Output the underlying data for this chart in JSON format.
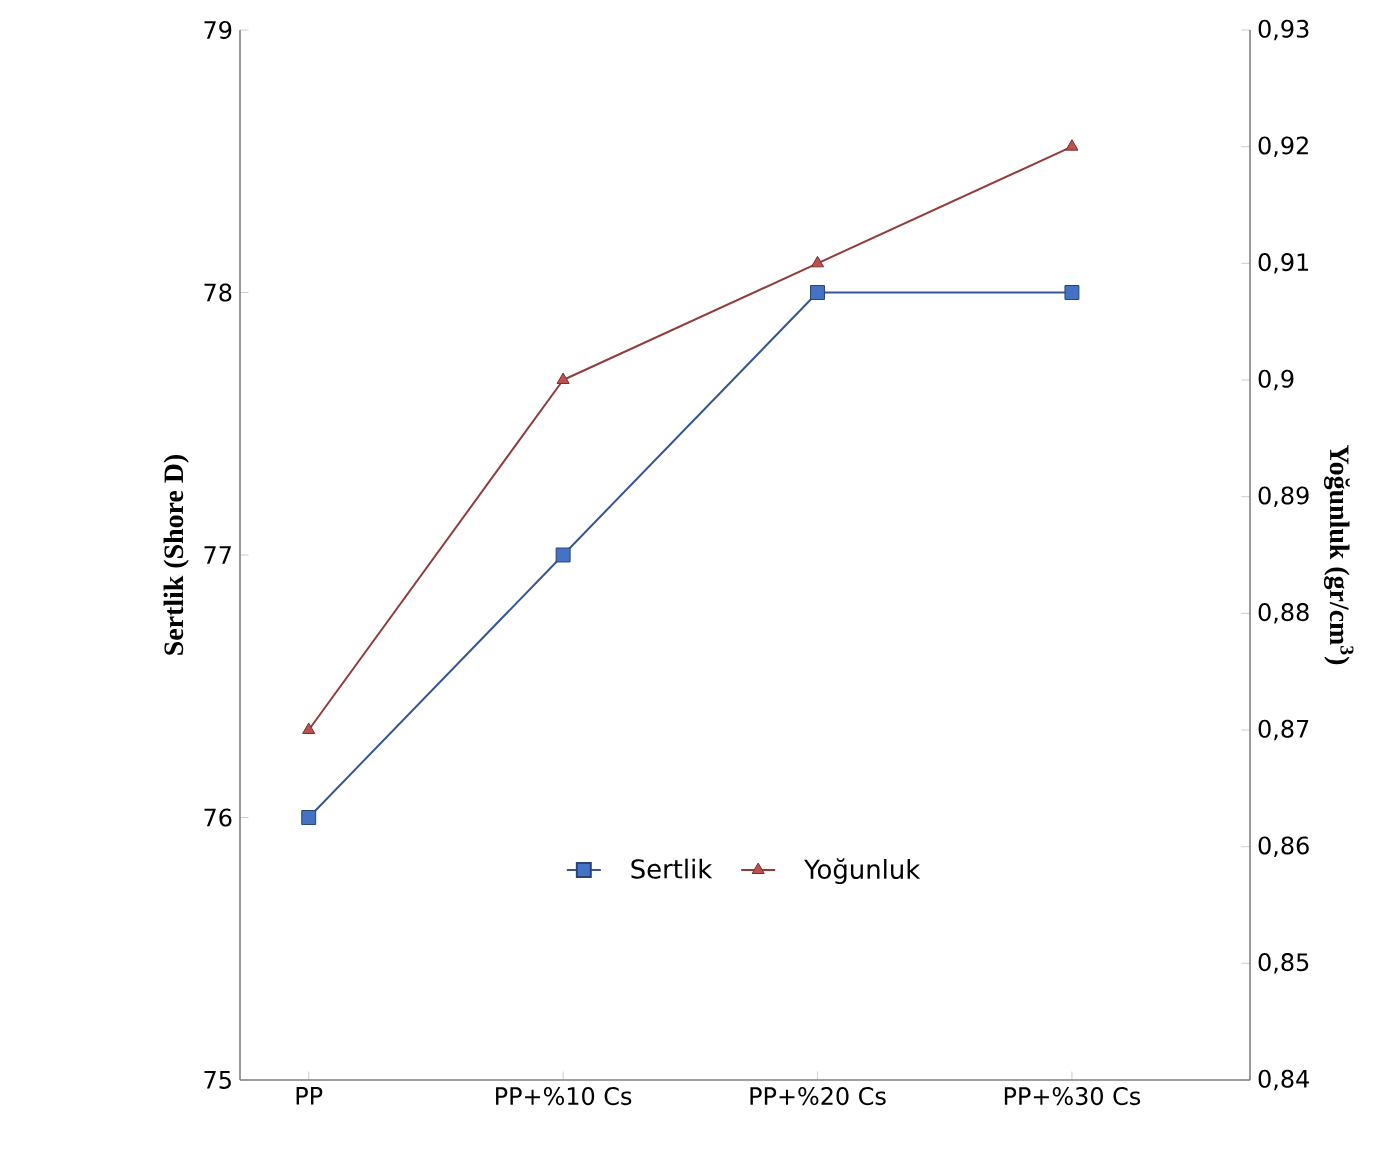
{
  "chart_data": {
    "type": "line",
    "categories": [
      "PP",
      "PP+%10 Cs",
      "PP+%20 Cs",
      "PP+%30 Cs"
    ],
    "ylabel": "Sertlik (Shore D)",
    "y2label": "Yoğunluk (gr/cm$^{3}$)",
    "ylim": [
      75,
      79
    ],
    "yticks": [
      75,
      76,
      77,
      78,
      79
    ],
    "y2lim": [
      0.84,
      0.93
    ],
    "y2ticks": [
      {
        "value": 0.84,
        "label": "0,84"
      },
      {
        "value": 0.85,
        "label": "0,85"
      },
      {
        "value": 0.86,
        "label": "0,86"
      },
      {
        "value": 0.87,
        "label": "0,87"
      },
      {
        "value": 0.88,
        "label": "0,88"
      },
      {
        "value": 0.89,
        "label": "0,89"
      },
      {
        "value": 0.9,
        "label": "0,9"
      },
      {
        "value": 0.91,
        "label": "0,91"
      },
      {
        "value": 0.92,
        "label": "0,92"
      },
      {
        "value": 0.93,
        "label": "0,93"
      }
    ],
    "series": [
      {
        "name": "Sertlik",
        "color": "#4472c4",
        "marker": "square",
        "values": [
          76,
          77,
          78,
          78
        ]
      },
      {
        "name": "Yoğunluk",
        "color": "#c0504d",
        "marker": "triangle",
        "axis": "y2",
        "values": [
          0.87,
          0.9,
          0.91,
          0.92
        ]
      }
    ],
    "legend": "bottom",
    "grid": false,
    "line_style": "solid"
  }
}
